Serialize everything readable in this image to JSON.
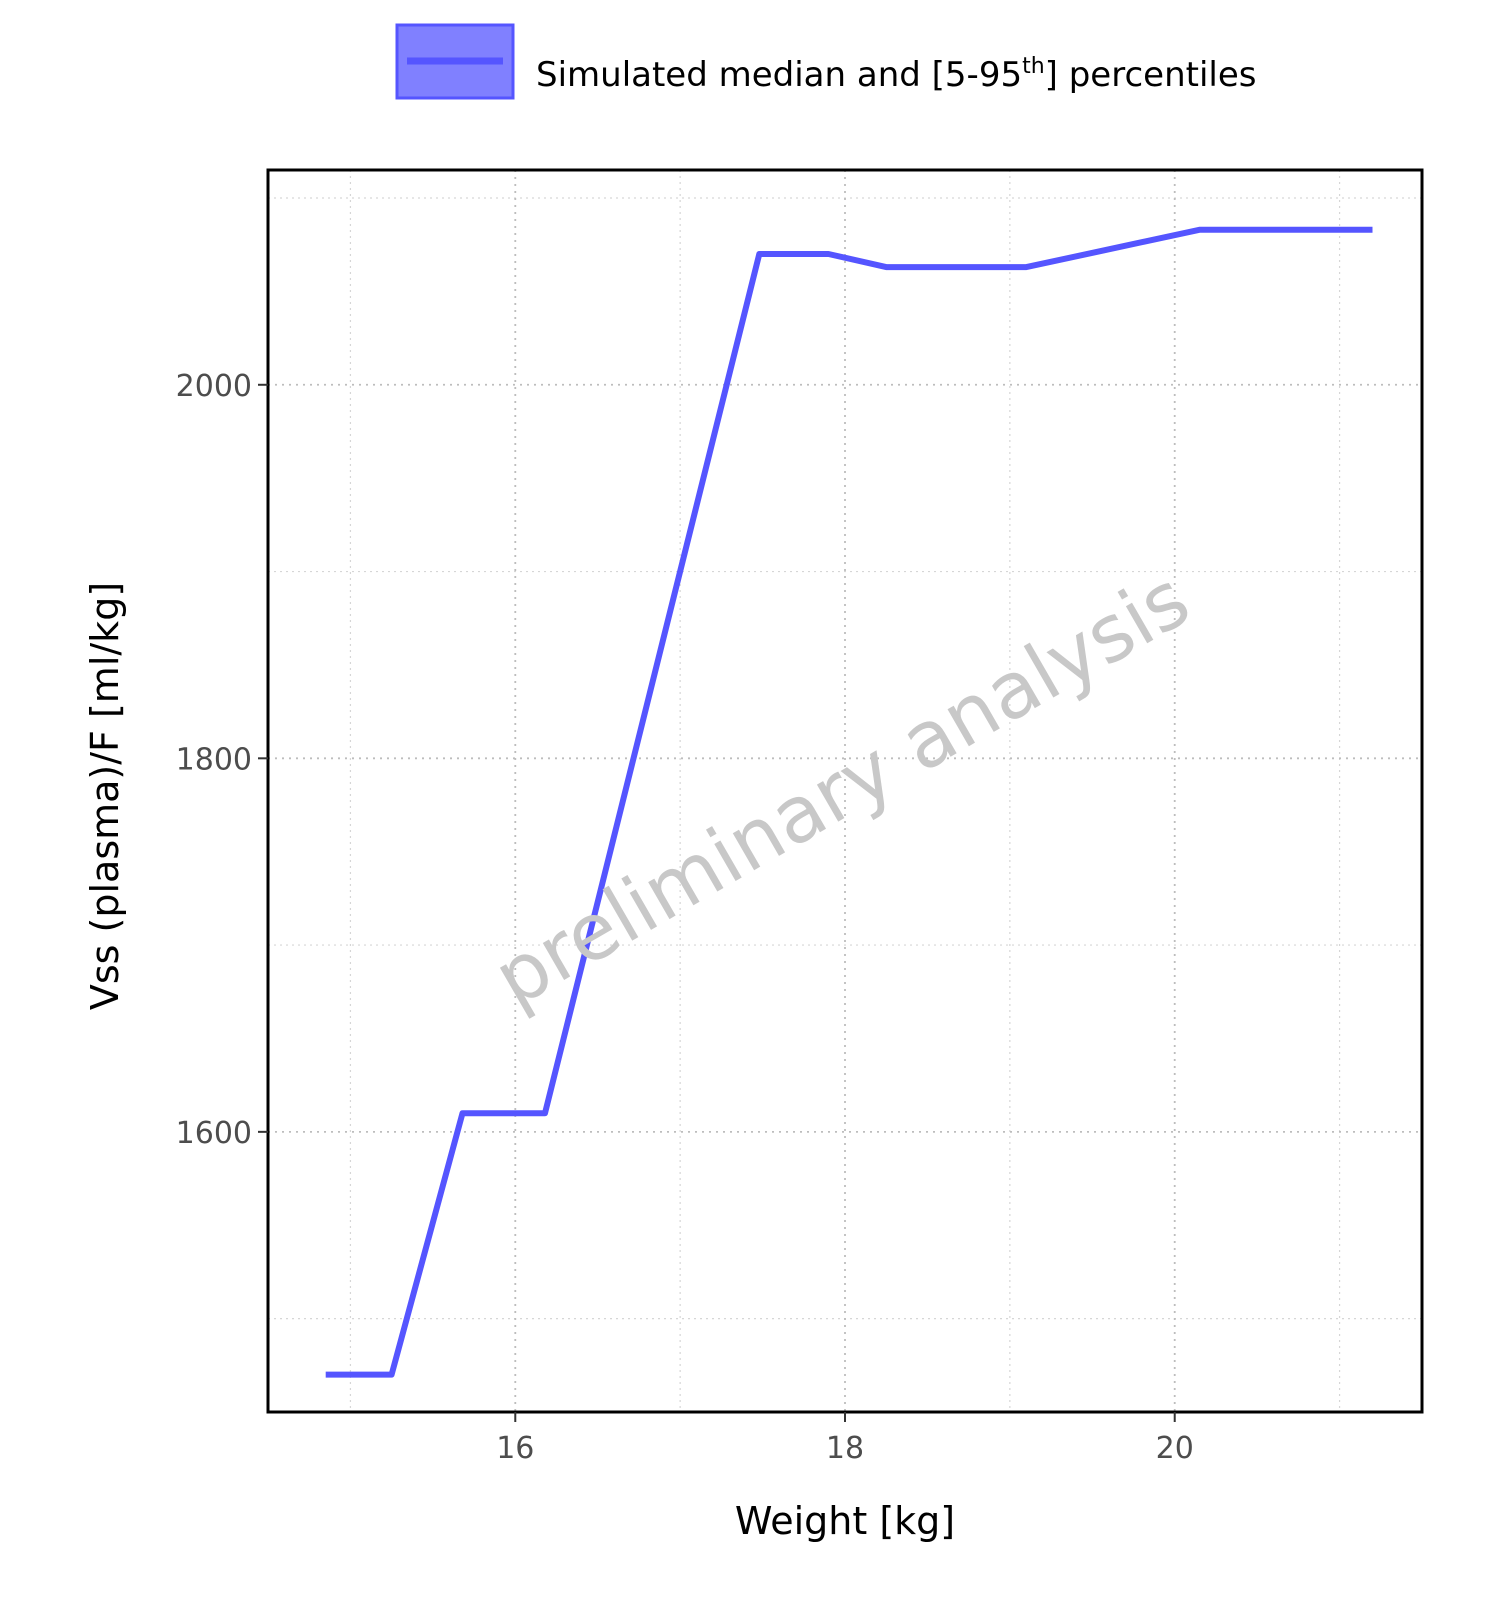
{
  "chart_data": {
    "type": "line",
    "xlabel": "Weight [kg]",
    "ylabel": "Vss (plasma)/F [ml/kg]",
    "xlim": [
      14.5,
      21.5
    ],
    "ylim": [
      1450,
      2115
    ],
    "x_ticks": [
      16,
      18,
      20
    ],
    "y_ticks": [
      1600,
      1800,
      2000
    ],
    "x_minor": [
      15,
      17,
      19,
      21
    ],
    "y_minor": [
      1500,
      1700,
      1900,
      2100
    ],
    "grid": true,
    "legend_position": "top",
    "legend": {
      "label_main": "Simulated median and [5-95",
      "label_sup": "th",
      "label_end": "] percentiles"
    },
    "watermark": "preliminary analysis",
    "series": [
      {
        "color": "#5555ff",
        "x": [
          14.85,
          15.25,
          15.68,
          16.18,
          17.48,
          17.9,
          18.25,
          19.1,
          20.15,
          21.2
        ],
        "y": [
          1470,
          1470,
          1610,
          1610,
          2070,
          2070,
          2063,
          2063,
          2083,
          2083
        ]
      }
    ]
  }
}
